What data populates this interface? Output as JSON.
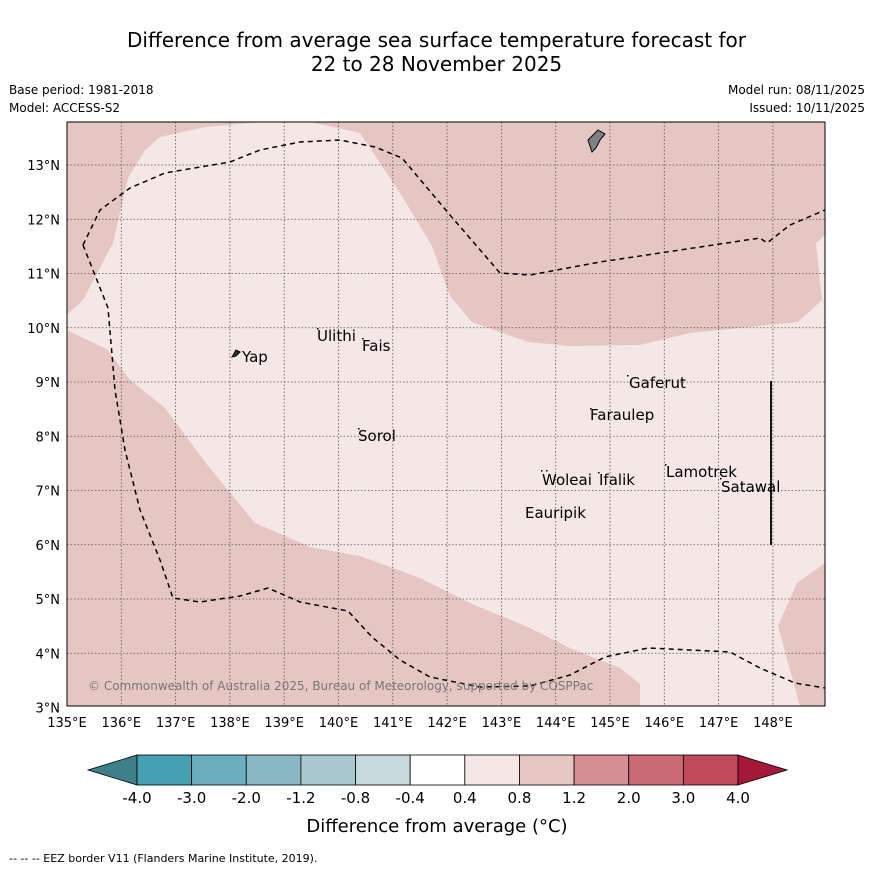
{
  "header": {
    "title_line1": "Difference from average sea surface temperature forecast for",
    "title_line2": "22 to 28 November 2025",
    "base_period": "Base period: 1981-2018",
    "model": "Model: ACCESS-S2",
    "model_run": "Model run: 08/11/2025",
    "issued": "Issued: 10/11/2025"
  },
  "map": {
    "lon_labels": [
      "135°E",
      "136°E",
      "137°E",
      "138°E",
      "139°E",
      "140°E",
      "141°E",
      "142°E",
      "143°E",
      "144°E",
      "145°E",
      "146°E",
      "147°E",
      "148°E"
    ],
    "lat_labels": [
      "13°N",
      "12°N",
      "11°N",
      "10°N",
      "9°N",
      "8°N",
      "7°N",
      "6°N",
      "5°N",
      "4°N",
      "3°N"
    ],
    "places": [
      {
        "name": "Yap"
      },
      {
        "name": "Ulithi"
      },
      {
        "name": "Fais"
      },
      {
        "name": "Gaferut"
      },
      {
        "name": "Faraulep"
      },
      {
        "name": "Sorol"
      },
      {
        "name": "Woleai"
      },
      {
        "name": "Ifalik"
      },
      {
        "name": "Lamotrek"
      },
      {
        "name": "Satawal"
      },
      {
        "name": "Eauripik"
      }
    ],
    "copyright": "© Commonwealth of Australia 2025, Bureau of Meteorology, supported by COSPPac",
    "zone_fill_colors": {
      "light": "#f4e7e6",
      "medium": "#e6c6c2"
    }
  },
  "colorbar": {
    "labels": [
      "-4.0",
      "-3.0",
      "-2.0",
      "-1.2",
      "-0.8",
      "-0.4",
      "0.4",
      "0.8",
      "1.2",
      "2.0",
      "3.0",
      "4.0"
    ],
    "colors": [
      "#45a1b2",
      "#6aaebd",
      "#87b8c4",
      "#a9c9cf",
      "#c7d9dd",
      "#ffffff",
      "#f4e7e6",
      "#e6c6c2",
      "#d68e95",
      "#cb6a75",
      "#c14a59"
    ],
    "under_color": "#3e7f89",
    "over_color": "#a6183a",
    "label": "Difference from average (°C)"
  },
  "footer": {
    "legend": "--  --  -- EEZ border V11 (Flanders Marine Institute, 2019)."
  }
}
